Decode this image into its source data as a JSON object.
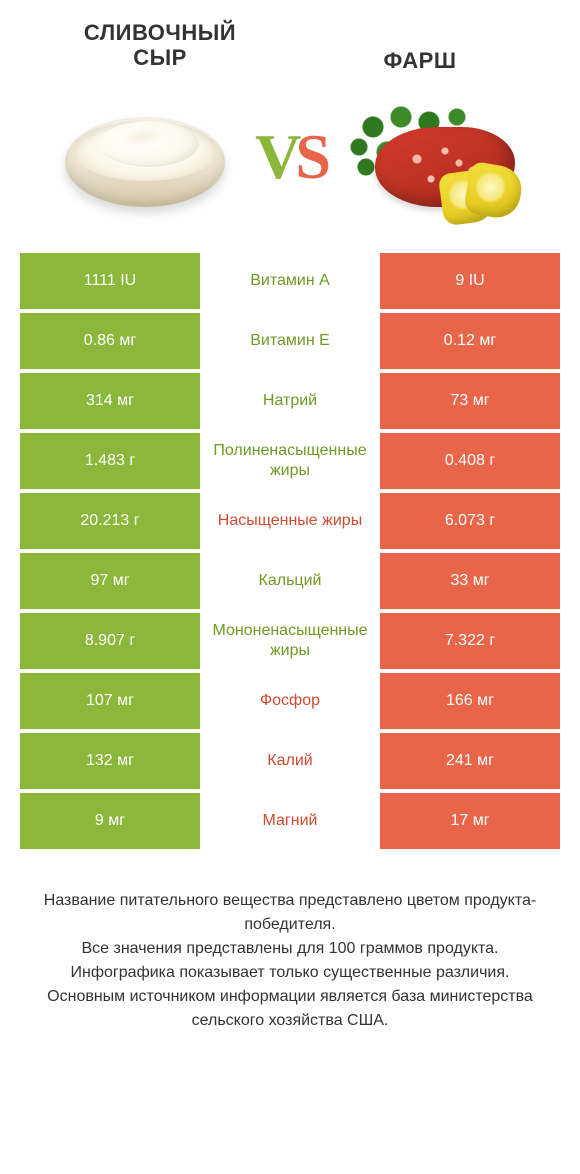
{
  "colors": {
    "left": "#8bb73a",
    "right": "#e8654a",
    "left_label": "#6f9a24",
    "right_label": "#d24a30",
    "text": "#333333",
    "white": "#ffffff"
  },
  "products": {
    "left_title": "СЛИВОЧНЫЙ\nСЫР",
    "right_title": "ФАРШ",
    "vs": "VS"
  },
  "rows": [
    {
      "label": "Витамин A",
      "left": "1111 IU",
      "right": "9 IU",
      "winner": "left"
    },
    {
      "label": "Витамин E",
      "left": "0.86 мг",
      "right": "0.12 мг",
      "winner": "left"
    },
    {
      "label": "Натрий",
      "left": "314 мг",
      "right": "73 мг",
      "winner": "left"
    },
    {
      "label": "Полиненасыщенные жиры",
      "left": "1.483 г",
      "right": "0.408 г",
      "winner": "left"
    },
    {
      "label": "Насыщенные жиры",
      "left": "20.213 г",
      "right": "6.073 г",
      "winner": "right"
    },
    {
      "label": "Кальций",
      "left": "97 мг",
      "right": "33 мг",
      "winner": "left"
    },
    {
      "label": "Мононенасыщенные жиры",
      "left": "8.907 г",
      "right": "7.322 г",
      "winner": "left"
    },
    {
      "label": "Фосфор",
      "left": "107 мг",
      "right": "166 мг",
      "winner": "right"
    },
    {
      "label": "Калий",
      "left": "132 мг",
      "right": "241 мг",
      "winner": "right"
    },
    {
      "label": "Магний",
      "left": "9 мг",
      "right": "17 мг",
      "winner": "right"
    }
  ],
  "footer": "Название питательного вещества представлено цветом продукта-победителя.\nВсе значения представлены для 100 граммов продукта.\nИнфографика показывает только существенные различия.\nОсновным источником информации является база министерства сельского хозяйства США."
}
